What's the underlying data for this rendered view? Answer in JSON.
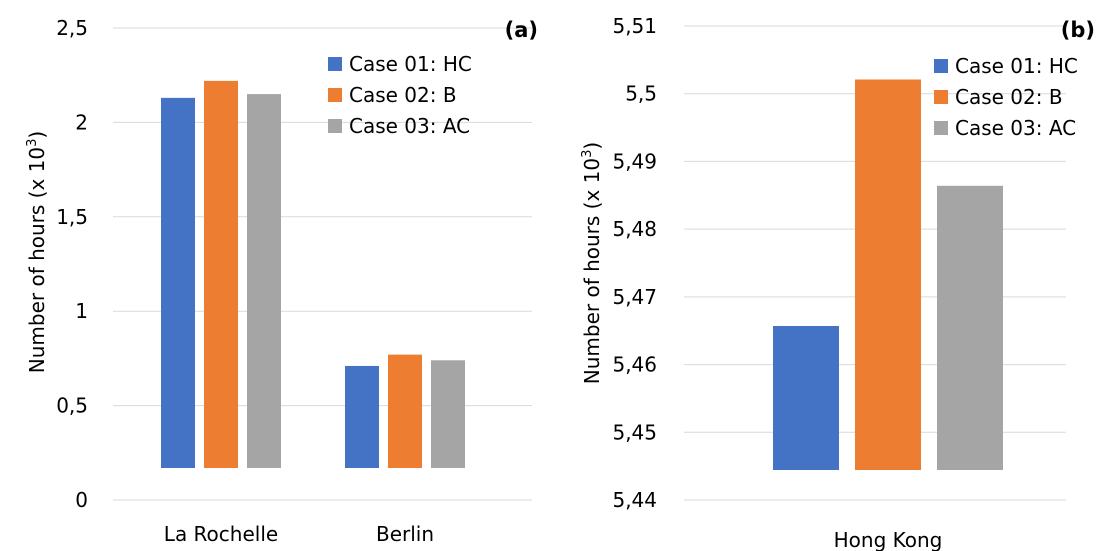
{
  "colors": {
    "case01": "#4472c4",
    "case02": "#ed7d31",
    "case03": "#a5a5a5",
    "grid": "#d9d9d9"
  },
  "chart_data": [
    {
      "type": "bar",
      "panel_label": "(a)",
      "categories": [
        "La Rochelle",
        "Berlin"
      ],
      "series": [
        {
          "name": "Case 01: HC",
          "values": [
            2.13,
            0.71
          ]
        },
        {
          "name": "Case 02: B",
          "values": [
            2.22,
            0.77
          ]
        },
        {
          "name": "Case 03: AC",
          "values": [
            2.15,
            0.74
          ]
        }
      ],
      "ylabel": "Number of hours (x 10",
      "ylabel_sup": "3",
      "ylabel_close": ")",
      "ylim": [
        0,
        2.5
      ],
      "yticks": [
        "0",
        "0,5",
        "1",
        "1,5",
        "2",
        "2,5"
      ],
      "grid": true,
      "legend_position": "top-right"
    },
    {
      "type": "bar",
      "panel_label": "(b)",
      "categories": [
        "Hong Kong"
      ],
      "series": [
        {
          "name": "Case 01: HC",
          "values": [
            5.4657
          ]
        },
        {
          "name": "Case 02: B",
          "values": [
            5.5021
          ]
        },
        {
          "name": "Case 03: AC",
          "values": [
            5.4864
          ]
        }
      ],
      "ylabel": "Number of hours (x 10",
      "ylabel_sup": "3",
      "ylabel_close": ")",
      "ylim": [
        5.44,
        5.51
      ],
      "yticks": [
        "5,44",
        "5,45",
        "5,46",
        "5,47",
        "5,48",
        "5,49",
        "5,5",
        "5,51"
      ],
      "grid": true,
      "legend_position": "top-right"
    }
  ]
}
